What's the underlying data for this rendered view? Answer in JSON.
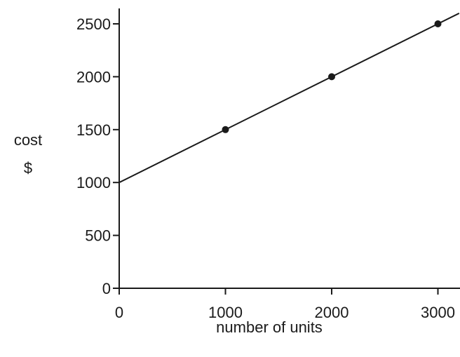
{
  "chart_data": {
    "type": "line",
    "xlabel": "number of units",
    "ylabel": [
      "cost",
      "$"
    ],
    "xlim": [
      0,
      3200
    ],
    "ylim": [
      0,
      2600
    ],
    "x_ticks": [
      0,
      1000,
      2000,
      3000
    ],
    "y_ticks": [
      0,
      500,
      1000,
      1500,
      2000,
      2500
    ],
    "grid": false,
    "line": {
      "x": [
        0,
        3200
      ],
      "y": [
        1000,
        2600
      ]
    },
    "points": [
      {
        "x": 1000,
        "y": 1500
      },
      {
        "x": 2000,
        "y": 2000
      },
      {
        "x": 3000,
        "y": 2500
      }
    ],
    "colors": {
      "line": "#1a1a1a",
      "points": "#1a1a1a",
      "axes": "#1a1a1a"
    }
  }
}
